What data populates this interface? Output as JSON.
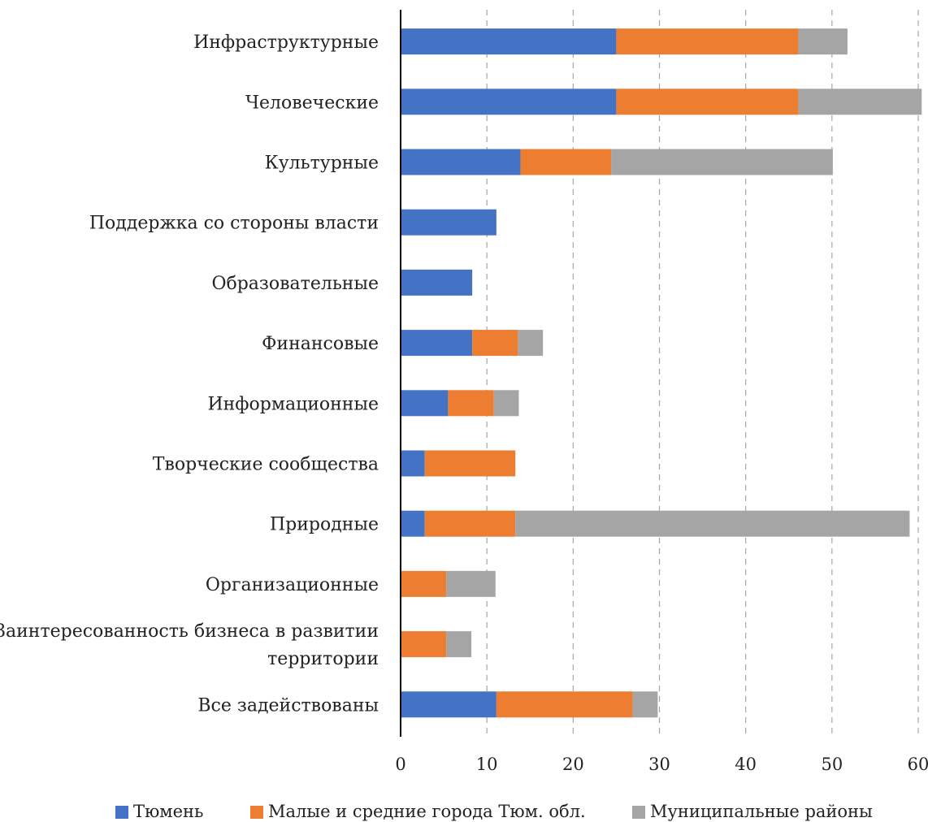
{
  "chart_data": {
    "type": "bar",
    "orientation": "horizontal",
    "stacked": true,
    "categories": [
      [
        "Инфраструктурные"
      ],
      [
        "Человеческие"
      ],
      [
        "Культурные"
      ],
      [
        "Поддержка со стороны власти"
      ],
      [
        "Образовательные"
      ],
      [
        "Финансовые"
      ],
      [
        "Информационные"
      ],
      [
        "Творческие сообщества"
      ],
      [
        "Природные"
      ],
      [
        "Организационные"
      ],
      [
        "Заинтересованность бизнеса в развитии",
        "территории"
      ],
      [
        "Все задействованы"
      ]
    ],
    "series": [
      {
        "name": "Тюмень",
        "color": "#4472c4",
        "values": [
          25,
          25,
          13.9,
          11.1,
          8.3,
          8.3,
          5.5,
          2.8,
          2.8,
          0,
          0,
          11.1
        ]
      },
      {
        "name": "Малые и средние города Тюм. обл.",
        "color": "#ed7d31",
        "values": [
          21.1,
          21.1,
          10.5,
          0,
          0,
          5.3,
          5.3,
          10.5,
          10.5,
          5.3,
          5.3,
          15.8
        ]
      },
      {
        "name": "Муниципальные районы",
        "color": "#a5a5a5",
        "values": [
          5.7,
          14.3,
          25.7,
          0,
          0,
          2.9,
          2.9,
          0,
          45.7,
          5.7,
          2.9,
          2.9
        ]
      }
    ],
    "xlim": [
      0,
      60
    ],
    "xticks": [
      0,
      10,
      20,
      30,
      40,
      50,
      60
    ],
    "grid": "vertical-dashed",
    "legend": "bottom"
  }
}
